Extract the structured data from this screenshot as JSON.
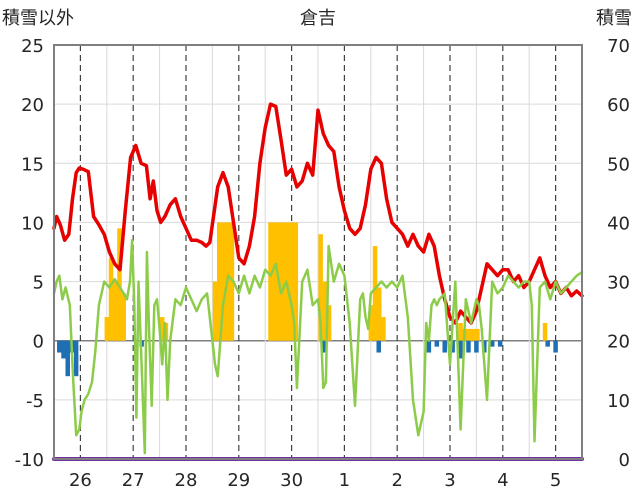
{
  "chart_data": {
    "type": "line",
    "title": "倉吉",
    "ylabel_left": "積雪以外",
    "ylabel_right": "積雪",
    "ylim_left": [
      -10,
      25
    ],
    "yticks_left": [
      "25",
      "20",
      "15",
      "10",
      "5",
      "0",
      "-5",
      "-10"
    ],
    "ylim_right": [
      0,
      70
    ],
    "yticks_right": [
      "70",
      "60",
      "50",
      "40",
      "30",
      "20",
      "10",
      "0"
    ],
    "x_range": [
      0,
      10
    ],
    "x_categories": [
      "26",
      "27",
      "28",
      "29",
      "30",
      "1",
      "2",
      "3",
      "4",
      "5"
    ],
    "grid": true,
    "colors": {
      "temperature": "#e60000",
      "other": "#8ccc4a",
      "precip": "#ffc000",
      "negative": "#1f6fb5",
      "snow_depth": "#7030a0"
    },
    "series": [
      {
        "kind": "line",
        "color_key": "temperature",
        "axis": "left",
        "x": [
          0.0,
          0.05,
          0.12,
          0.2,
          0.28,
          0.35,
          0.42,
          0.48,
          0.55,
          0.65,
          0.75,
          0.85,
          0.95,
          1.05,
          1.15,
          1.25,
          1.35,
          1.45,
          1.55,
          1.65,
          1.75,
          1.82,
          1.88,
          1.95,
          2.02,
          2.1,
          2.2,
          2.3,
          2.4,
          2.5,
          2.6,
          2.7,
          2.8,
          2.88,
          2.95,
          3.02,
          3.1,
          3.2,
          3.3,
          3.4,
          3.5,
          3.6,
          3.7,
          3.8,
          3.9,
          4.0,
          4.1,
          4.2,
          4.3,
          4.4,
          4.5,
          4.6,
          4.7,
          4.8,
          4.9,
          5.0,
          5.1,
          5.2,
          5.3,
          5.4,
          5.5,
          5.6,
          5.7,
          5.8,
          5.9,
          6.0,
          6.1,
          6.2,
          6.3,
          6.4,
          6.5,
          6.6,
          6.7,
          6.8,
          6.9,
          7.0,
          7.1,
          7.2,
          7.3,
          7.4,
          7.5,
          7.6,
          7.7,
          7.8,
          7.9,
          8.0,
          8.1,
          8.2,
          8.3,
          8.4,
          8.5,
          8.6,
          8.7,
          8.8,
          8.9,
          9.0,
          9.1,
          9.2,
          9.3,
          9.4,
          9.5,
          9.6,
          9.7,
          9.8,
          9.9,
          10.0
        ],
        "y": [
          9.5,
          10.5,
          9.8,
          8.5,
          9.0,
          12.0,
          14.2,
          14.6,
          14.5,
          14.3,
          10.5,
          9.8,
          9.0,
          7.5,
          6.5,
          6.0,
          11.0,
          15.5,
          16.5,
          15.0,
          14.8,
          12.0,
          13.5,
          11.0,
          10.0,
          10.5,
          11.5,
          12.0,
          10.5,
          9.5,
          8.5,
          8.5,
          8.3,
          8.0,
          8.3,
          10.5,
          13.0,
          14.2,
          13.0,
          10.0,
          7.0,
          6.5,
          8.0,
          10.5,
          15.0,
          18.0,
          20.0,
          19.8,
          17.0,
          14.0,
          14.5,
          13.0,
          13.5,
          15.0,
          14.0,
          19.5,
          17.5,
          16.5,
          16.0,
          13.0,
          11.0,
          9.5,
          9.0,
          9.5,
          11.5,
          14.5,
          15.5,
          15.0,
          12.0,
          10.0,
          9.5,
          9.0,
          8.0,
          9.0,
          8.0,
          7.5,
          9.0,
          8.0,
          5.5,
          3.5,
          2.0,
          1.5,
          2.5,
          2.0,
          1.5,
          2.5,
          4.5,
          6.5,
          6.0,
          5.5,
          6.0,
          6.0,
          5.0,
          5.5,
          4.5,
          5.0,
          6.0,
          7.0,
          5.5,
          4.5,
          5.0,
          4.0,
          4.5,
          3.8,
          4.2,
          3.8
        ]
      },
      {
        "kind": "line",
        "color_key": "other",
        "axis": "left",
        "x": [
          0.0,
          0.05,
          0.1,
          0.16,
          0.22,
          0.3,
          0.36,
          0.42,
          0.48,
          0.52,
          0.58,
          0.65,
          0.72,
          0.78,
          0.85,
          0.95,
          1.05,
          1.15,
          1.25,
          1.32,
          1.38,
          1.44,
          1.48,
          1.52,
          1.56,
          1.6,
          1.66,
          1.72,
          1.76,
          1.8,
          1.85,
          1.9,
          1.95,
          2.0,
          2.05,
          2.1,
          2.15,
          2.2,
          2.3,
          2.4,
          2.5,
          2.6,
          2.7,
          2.8,
          2.9,
          3.0,
          3.05,
          3.1,
          3.2,
          3.3,
          3.4,
          3.5,
          3.6,
          3.7,
          3.8,
          3.9,
          4.0,
          4.1,
          4.2,
          4.3,
          4.4,
          4.5,
          4.55,
          4.6,
          4.7,
          4.8,
          4.9,
          5.0,
          5.05,
          5.1,
          5.15,
          5.2,
          5.3,
          5.4,
          5.5,
          5.6,
          5.7,
          5.8,
          5.85,
          5.9,
          5.95,
          6.0,
          6.1,
          6.2,
          6.3,
          6.4,
          6.5,
          6.6,
          6.7,
          6.8,
          6.9,
          7.0,
          7.05,
          7.1,
          7.15,
          7.2,
          7.25,
          7.3,
          7.4,
          7.5,
          7.6,
          7.7,
          7.8,
          7.9,
          8.0,
          8.05,
          8.1,
          8.2,
          8.3,
          8.4,
          8.5,
          8.6,
          8.7,
          8.8,
          8.9,
          9.0,
          9.05,
          9.1,
          9.2,
          9.3,
          9.4,
          9.5,
          9.6,
          9.7,
          9.8,
          9.9,
          10.0
        ],
        "y": [
          4.0,
          5.0,
          5.5,
          3.5,
          4.5,
          3.0,
          -3.0,
          -8.0,
          -7.5,
          -6.0,
          -5.0,
          -4.5,
          -3.5,
          -1.0,
          3.0,
          5.0,
          4.5,
          5.2,
          4.5,
          4.0,
          3.5,
          5.0,
          8.5,
          3.0,
          -6.5,
          5.0,
          -2.0,
          -9.5,
          7.5,
          1.0,
          -5.5,
          3.0,
          3.5,
          1.0,
          -2.0,
          1.5,
          -5.0,
          0.0,
          3.5,
          3.0,
          4.5,
          3.5,
          2.5,
          3.5,
          4.0,
          0.0,
          -2.0,
          -3.0,
          3.0,
          5.5,
          5.0,
          4.0,
          5.5,
          4.0,
          5.5,
          4.5,
          6.0,
          5.5,
          6.5,
          4.0,
          5.0,
          3.0,
          1.5,
          -4.0,
          5.0,
          6.0,
          3.0,
          3.5,
          1.5,
          -4.0,
          -3.5,
          8.0,
          5.0,
          6.5,
          5.5,
          1.5,
          -5.5,
          3.5,
          4.0,
          2.0,
          1.0,
          4.0,
          4.5,
          5.0,
          4.5,
          5.0,
          4.5,
          5.5,
          2.0,
          -5.0,
          -8.0,
          -6.0,
          1.5,
          0.0,
          3.0,
          3.5,
          3.0,
          3.5,
          4.0,
          -2.0,
          5.0,
          -7.5,
          3.5,
          1.5,
          3.5,
          3.0,
          1.0,
          -5.0,
          5.0,
          4.0,
          4.5,
          5.5,
          5.0,
          4.5,
          5.0,
          5.0,
          3.0,
          -8.5,
          4.5,
          5.0,
          3.5,
          5.0,
          4.0,
          4.5,
          5.0,
          5.5,
          5.8
        ]
      },
      {
        "kind": "bar",
        "color_key": "precip",
        "axis": "left",
        "x": [
          1.0,
          1.08,
          1.16,
          1.24,
          1.32,
          1.4,
          2.1,
          2.18,
          3.0,
          3.1,
          3.2,
          3.3,
          3.4,
          3.5,
          3.6,
          3.7,
          3.8,
          3.9,
          4.0,
          4.1,
          4.2,
          4.3,
          4.4,
          4.5,
          4.6,
          4.7,
          4.8,
          4.9,
          5.0,
          5.1,
          5.2,
          5.3,
          5.4,
          5.5,
          5.6,
          5.7,
          5.8,
          5.9,
          6.0,
          6.1,
          6.2,
          6.3,
          6.4,
          6.5,
          6.6,
          6.7,
          6.8,
          6.9,
          7.0,
          7.1,
          7.2,
          7.3,
          7.4,
          7.5,
          7.6,
          7.7,
          7.8,
          7.9,
          8.0,
          8.1,
          8.2,
          8.3,
          8.4,
          8.5,
          8.6,
          8.7,
          8.8,
          8.9,
          9.0
        ],
        "y": [
          2.0,
          7.0,
          5.0,
          9.5,
          4.0,
          0.0,
          0.0,
          0.0,
          0.0,
          0.0,
          0.0,
          0.0,
          0.0,
          0.0,
          0.0,
          0.0,
          0.0,
          0.0,
          0.0,
          0.0,
          0.0,
          0.0,
          0.0,
          0.0,
          0.0,
          0.0,
          0.0,
          0.0,
          0.0,
          0.0,
          0.0,
          0.0,
          0.0,
          0.0,
          0.0,
          0.0,
          0.0,
          0.0,
          0.0,
          0.0,
          0.0,
          0.0,
          0.0,
          0.0,
          0.0,
          0.0,
          0.0,
          0.0,
          0.0,
          0.0,
          0.0,
          0.0,
          0.0,
          0.0,
          0.0,
          0.0,
          0.0,
          0.0,
          0.0,
          0.0,
          0.0,
          0.0,
          0.0,
          0.0,
          0.0,
          0.0,
          0.0,
          0.0,
          0.0
        ]
      },
      {
        "kind": "bar",
        "color_key": "precip",
        "axis": "left",
        "x": [
          2.05,
          2.12,
          3.05,
          3.13,
          3.21,
          3.29,
          3.37,
          4.1,
          4.18,
          4.26,
          4.34,
          4.42,
          4.5,
          4.58,
          5.05,
          5.13,
          5.21,
          6.0,
          6.08,
          6.16,
          6.24,
          7.7,
          7.78,
          7.86,
          7.94,
          8.02,
          9.3
        ],
        "y": [
          2.0,
          1.5,
          5.0,
          10.0,
          10.0,
          10.0,
          10.0,
          10.0,
          10.0,
          10.0,
          10.0,
          10.0,
          10.0,
          10.0,
          9.0,
          5.0,
          3.0,
          3.0,
          8.0,
          4.5,
          2.0,
          1.5,
          1.0,
          1.0,
          1.0,
          1.0,
          1.5
        ]
      },
      {
        "kind": "bar",
        "color_key": "negative",
        "axis": "left",
        "x": [
          0.1,
          0.18,
          0.26,
          0.34,
          0.42,
          1.66,
          5.1,
          6.15,
          7.1,
          7.25,
          7.4,
          7.55,
          7.7,
          7.85,
          8.0,
          8.15,
          8.3,
          8.45,
          9.35,
          9.5
        ],
        "y": [
          -1.0,
          -1.5,
          -3.0,
          -1.0,
          -3.0,
          -0.5,
          -1.0,
          -1.0,
          -1.0,
          -0.5,
          -1.0,
          -1.0,
          -1.5,
          -1.0,
          -1.0,
          -1.0,
          -0.5,
          -0.5,
          -0.5,
          -1.0
        ]
      },
      {
        "kind": "line",
        "color_key": "snow_depth",
        "axis": "right",
        "x": [
          0,
          10
        ],
        "y": [
          0,
          0
        ]
      }
    ]
  }
}
